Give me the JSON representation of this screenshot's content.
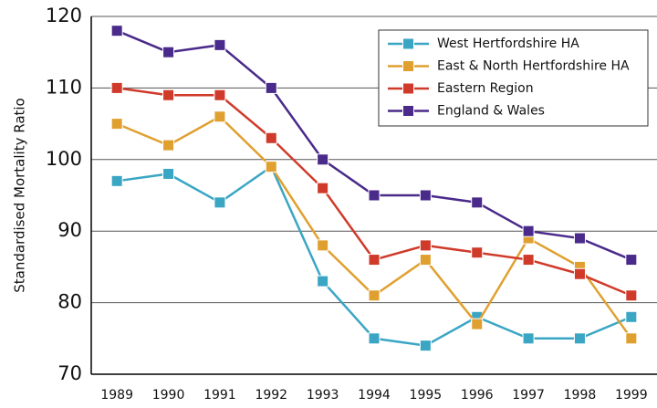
{
  "chart_data": {
    "type": "line",
    "ylabel": "Standardised Mortality Ratio",
    "categories": [
      "1989",
      "1990",
      "1991",
      "1992",
      "1993",
      "1994",
      "1995",
      "1996",
      "1997",
      "1998",
      "1999"
    ],
    "series": [
      {
        "name": "West Hertfordshire HA",
        "color": "#3aa6c4",
        "values": [
          97,
          98,
          94,
          99,
          83,
          75,
          74,
          78,
          75,
          75,
          78
        ]
      },
      {
        "name": "East & North Hertfordshire HA",
        "color": "#e0a030",
        "values": [
          105,
          102,
          106,
          99,
          88,
          81,
          86,
          77,
          89,
          85,
          75
        ]
      },
      {
        "name": "Eastern Region",
        "color": "#d03a2a",
        "values": [
          110,
          109,
          109,
          103,
          96,
          86,
          88,
          87,
          86,
          84,
          81
        ]
      },
      {
        "name": "England & Wales",
        "color": "#4a2a8a",
        "values": [
          118,
          115,
          116,
          110,
          100,
          95,
          95,
          94,
          90,
          89,
          86
        ]
      }
    ],
    "ylim": [
      70,
      120
    ],
    "yticks": [
      70,
      80,
      90,
      100,
      110,
      120
    ],
    "grid": true,
    "legend": "upper right"
  }
}
